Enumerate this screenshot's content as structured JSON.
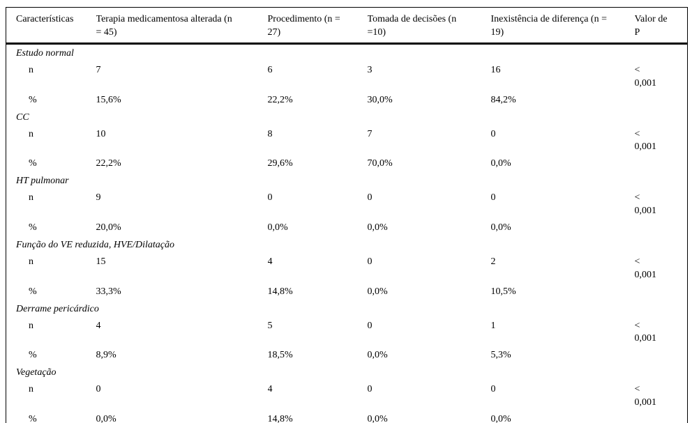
{
  "table": {
    "columns": [
      "Características",
      "Terapia medicamentosa alterada (n = 45)",
      "Procedimento (n = 27)",
      "Tomada de decisões (n =10)",
      "Inexistência de diferença (n = 19)",
      "Valor de P"
    ],
    "row_labels": {
      "n": "n",
      "pct": "%"
    },
    "groups": [
      {
        "name": "Estudo normal",
        "n": [
          "7",
          "6",
          "3",
          "16"
        ],
        "pct": [
          "15,6%",
          "22,2%",
          "30,0%",
          "84,2%"
        ],
        "p_value": "< 0,001"
      },
      {
        "name": "CC",
        "n": [
          "10",
          "8",
          "7",
          "0"
        ],
        "pct": [
          "22,2%",
          "29,6%",
          "70,0%",
          "0,0%"
        ],
        "p_value": "< 0,001"
      },
      {
        "name": "HT pulmonar",
        "n": [
          "9",
          "0",
          "0",
          "0"
        ],
        "pct": [
          "20,0%",
          "0,0%",
          "0,0%",
          "0,0%"
        ],
        "p_value": "< 0,001"
      },
      {
        "name": "Função do VE reduzida, HVE/Dilatação",
        "n": [
          "15",
          "4",
          "0",
          "2"
        ],
        "pct": [
          "33,3%",
          "14,8%",
          "0,0%",
          "10,5%"
        ],
        "p_value": "< 0,001"
      },
      {
        "name": "Derrame pericárdico",
        "n": [
          "4",
          "5",
          "0",
          "1"
        ],
        "pct": [
          "8,9%",
          "18,5%",
          "0,0%",
          "5,3%"
        ],
        "p_value": "< 0,001"
      },
      {
        "name": "Vegetação",
        "n": [
          "0",
          "4",
          "0",
          "0"
        ],
        "pct": [
          "0,0%",
          "14,8%",
          "0,0%",
          "0,0%"
        ],
        "p_value": "< 0,001"
      }
    ],
    "colors": {
      "text": "#000000",
      "border": "#000000",
      "background": "#ffffff"
    }
  }
}
